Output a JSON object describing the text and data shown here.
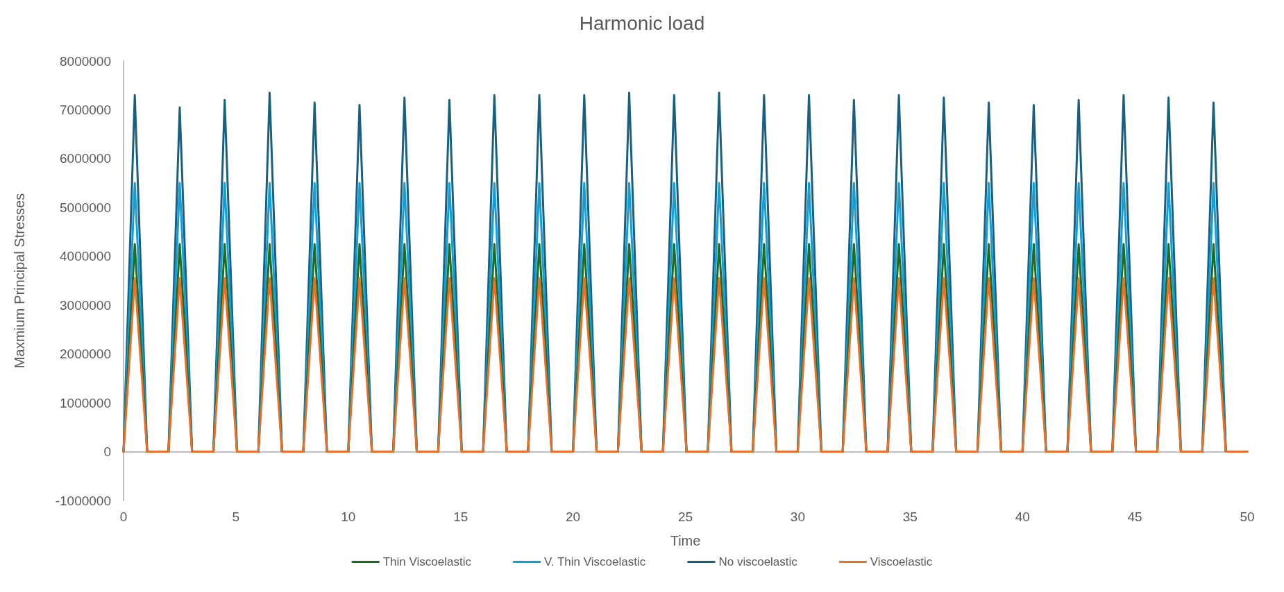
{
  "chart_data": {
    "type": "line",
    "title": "Harmonic load",
    "xlabel": "Time",
    "ylabel": "Maxmium Principal Stresses",
    "x": [
      0,
      0.5,
      1.05,
      2,
      2.5,
      3.05,
      4,
      4.5,
      5.05,
      6,
      6.5,
      7.05,
      8,
      8.5,
      9.05,
      10,
      10.5,
      11.05,
      12,
      12.5,
      13.05,
      14,
      14.5,
      15.05,
      16,
      16.5,
      17.05,
      18,
      18.5,
      19.05,
      20,
      20.5,
      21.05,
      22,
      22.5,
      23.05,
      24,
      24.5,
      25.05,
      26,
      26.5,
      27.05,
      28,
      28.5,
      29.05,
      30,
      30.5,
      31.05,
      32,
      32.5,
      33.05,
      34,
      34.5,
      35.05,
      36,
      36.5,
      37.05,
      38,
      38.5,
      39.05,
      40,
      40.5,
      41.05,
      42,
      42.5,
      43.05,
      44,
      44.5,
      45.05,
      46,
      46.5,
      47.05,
      48,
      48.5,
      49.05,
      50
    ],
    "series": [
      {
        "name": "Thin Viscoelastic",
        "color": "#1e6b24",
        "values": [
          0,
          4250000,
          0,
          0,
          4250000,
          0,
          0,
          4250000,
          0,
          0,
          4250000,
          0,
          0,
          4250000,
          0,
          0,
          4250000,
          0,
          0,
          4250000,
          0,
          0,
          4250000,
          0,
          0,
          4250000,
          0,
          0,
          4250000,
          0,
          0,
          4250000,
          0,
          0,
          4250000,
          0,
          0,
          4250000,
          0,
          0,
          4250000,
          0,
          0,
          4250000,
          0,
          0,
          4250000,
          0,
          0,
          4250000,
          0,
          0,
          4250000,
          0,
          0,
          4250000,
          0,
          0,
          4250000,
          0,
          0,
          4250000,
          0,
          0,
          4250000,
          0,
          0,
          4250000,
          0,
          0,
          4250000,
          0,
          0,
          4250000,
          0,
          0
        ]
      },
      {
        "name": "V. Thin Viscoelastic",
        "color": "#129fd8",
        "values": [
          0,
          5500000,
          0,
          0,
          5500000,
          0,
          0,
          5500000,
          0,
          0,
          5500000,
          0,
          0,
          5500000,
          0,
          0,
          5500000,
          0,
          0,
          5500000,
          0,
          0,
          5500000,
          0,
          0,
          5500000,
          0,
          0,
          5500000,
          0,
          0,
          5500000,
          0,
          0,
          5500000,
          0,
          0,
          5500000,
          0,
          0,
          5500000,
          0,
          0,
          5500000,
          0,
          0,
          5500000,
          0,
          0,
          5500000,
          0,
          0,
          5500000,
          0,
          0,
          5500000,
          0,
          0,
          5500000,
          0,
          0,
          5500000,
          0,
          0,
          5500000,
          0,
          0,
          5500000,
          0,
          0,
          5500000,
          0,
          0,
          5500000,
          0,
          0
        ]
      },
      {
        "name": "No viscoelastic",
        "color": "#185f80",
        "values": [
          0,
          7300000,
          0,
          0,
          7050000,
          0,
          0,
          7200000,
          0,
          0,
          7350000,
          0,
          0,
          7150000,
          0,
          0,
          7100000,
          0,
          0,
          7250000,
          0,
          0,
          7200000,
          0,
          0,
          7300000,
          0,
          0,
          7300000,
          0,
          0,
          7300000,
          0,
          0,
          7350000,
          0,
          0,
          7300000,
          0,
          0,
          7350000,
          0,
          0,
          7300000,
          0,
          0,
          7300000,
          0,
          0,
          7200000,
          0,
          0,
          7300000,
          0,
          0,
          7250000,
          0,
          0,
          7150000,
          0,
          0,
          7100000,
          0,
          0,
          7200000,
          0,
          0,
          7300000,
          0,
          0,
          7250000,
          0,
          0,
          7150000,
          0,
          0
        ]
      },
      {
        "name": "Viscoelastic",
        "color": "#e8702f",
        "values": [
          0,
          3550000,
          0,
          0,
          3550000,
          0,
          0,
          3550000,
          0,
          0,
          3550000,
          0,
          0,
          3550000,
          0,
          0,
          3550000,
          0,
          0,
          3550000,
          0,
          0,
          3550000,
          0,
          0,
          3550000,
          0,
          0,
          3550000,
          0,
          0,
          3550000,
          0,
          0,
          3550000,
          0,
          0,
          3550000,
          0,
          0,
          3550000,
          0,
          0,
          3550000,
          0,
          0,
          3550000,
          0,
          0,
          3550000,
          0,
          0,
          3550000,
          0,
          0,
          3550000,
          0,
          0,
          3550000,
          0,
          0,
          3550000,
          0,
          0,
          3550000,
          0,
          0,
          3550000,
          0,
          0,
          3550000,
          0,
          0,
          3550000,
          0,
          0
        ]
      }
    ],
    "xlim": [
      0,
      50
    ],
    "xticks": [
      0,
      5,
      10,
      15,
      20,
      25,
      30,
      35,
      40,
      45,
      50
    ],
    "ylim": [
      -1000000,
      8000000
    ],
    "yticks": [
      -1000000,
      0,
      1000000,
      2000000,
      3000000,
      4000000,
      5000000,
      6000000,
      7000000,
      8000000
    ],
    "legend": "bottom",
    "marker": "none",
    "line_style": "solid"
  }
}
